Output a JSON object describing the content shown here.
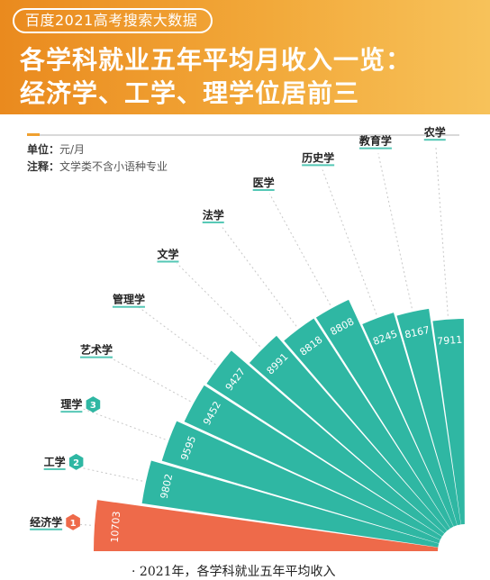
{
  "header": {
    "tag": "百度2021高考搜索大数据",
    "title_line1": "各学科就业五年平均月收入一览：",
    "title_line2": "经济学、工学、理学位居前三",
    "gradient": [
      "#ea8a1e",
      "#f7c25a"
    ]
  },
  "notes": {
    "unit_label": "单位：",
    "unit_value": "元/月",
    "remark_label": "注释：",
    "remark_value": "文学类不含小语种专业"
  },
  "footer": {
    "bullet": "·",
    "text": "2021年，各学科就业五年平均收入"
  },
  "chart_data": {
    "type": "bar",
    "layout": "radial-fan",
    "categories": [
      "经济学",
      "工学",
      "理学",
      "艺术学",
      "管理学",
      "文学",
      "法学",
      "医学",
      "历史学",
      "教育学",
      "农学"
    ],
    "values": [
      10703,
      9802,
      9595,
      9452,
      9427,
      8991,
      8818,
      8808,
      8245,
      8167,
      7911
    ],
    "ranks": [
      "1",
      "2",
      "3"
    ],
    "unit": "元/月",
    "colors": {
      "top": "#ee6a4a",
      "others": "#2fb7a3",
      "badge": "#ee6a4a",
      "badge_green": "#2fb7a3",
      "label_underline": "#54c7b5"
    }
  }
}
